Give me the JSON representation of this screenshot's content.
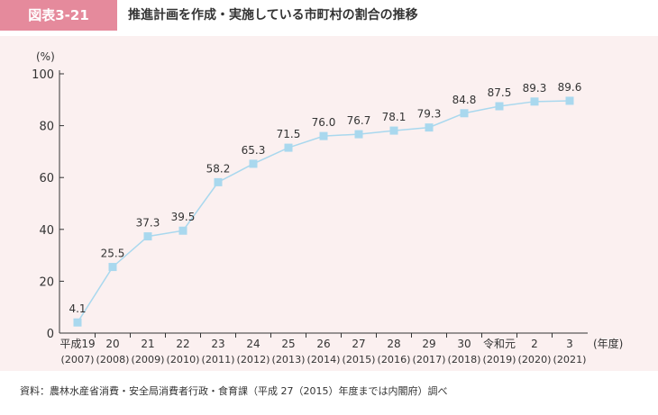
{
  "header": {
    "figure_label": "図表3-21",
    "title": "推進計画を作成・実施している市町村の割合の推移"
  },
  "source_note": "資料：農林水産省消費・安全局消費者行政・食育課（平成 27（2015）年度までは内閣府）調べ",
  "colors": {
    "label_bg": "#e58a9c",
    "panel_bg": "#fbf0f0",
    "line": "#a9d8ee",
    "marker": "#a9d8ee",
    "axis": "#333333"
  },
  "chart_data": {
    "type": "line",
    "title": "",
    "ylabel": "(%)",
    "xlabel": "(年度)",
    "ylim": [
      0,
      100
    ],
    "yticks": [
      0,
      20,
      40,
      60,
      80,
      100
    ],
    "grid": false,
    "categories": [
      {
        "era": "平成19",
        "year": "(2007)"
      },
      {
        "era": "20",
        "year": "(2008)"
      },
      {
        "era": "21",
        "year": "(2009)"
      },
      {
        "era": "22",
        "year": "(2010)"
      },
      {
        "era": "23",
        "year": "(2011)"
      },
      {
        "era": "24",
        "year": "(2012)"
      },
      {
        "era": "25",
        "year": "(2013)"
      },
      {
        "era": "26",
        "year": "(2014)"
      },
      {
        "era": "27",
        "year": "(2015)"
      },
      {
        "era": "28",
        "year": "(2016)"
      },
      {
        "era": "29",
        "year": "(2017)"
      },
      {
        "era": "30",
        "year": "(2018)"
      },
      {
        "era": "令和元",
        "year": "(2019)"
      },
      {
        "era": "2",
        "year": "(2020)"
      },
      {
        "era": "3",
        "year": "(2021)"
      }
    ],
    "values": [
      4.1,
      25.5,
      37.3,
      39.5,
      58.2,
      65.3,
      71.5,
      76.0,
      76.7,
      78.1,
      79.3,
      84.8,
      87.5,
      89.3,
      89.6
    ],
    "value_labels": [
      "4.1",
      "25.5",
      "37.3",
      "39.5",
      "58.2",
      "65.3",
      "71.5",
      "76.0",
      "76.7",
      "78.1",
      "79.3",
      "84.8",
      "87.5",
      "89.3",
      "89.6"
    ]
  }
}
